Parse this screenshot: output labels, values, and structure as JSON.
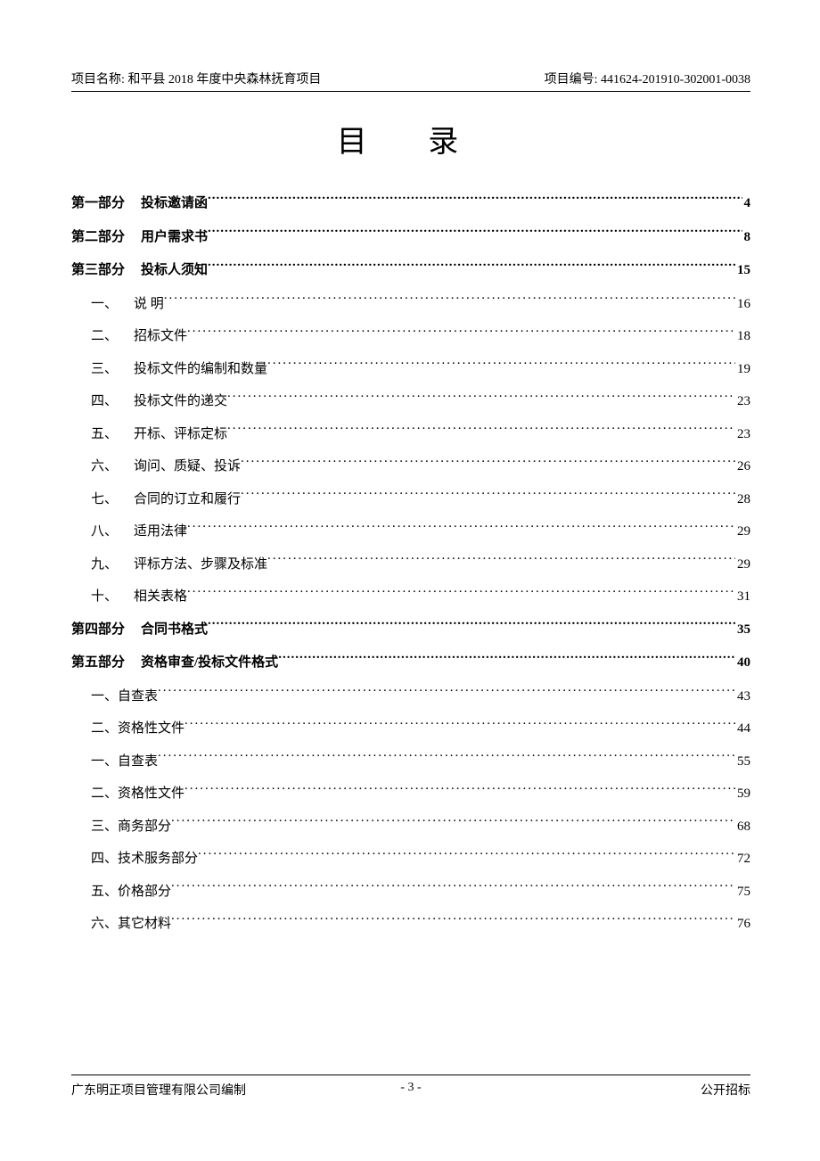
{
  "header": {
    "left": "项目名称: 和平县 2018 年度中央森林抚育项目",
    "right": "项目编号: 441624-201910-302001-0038"
  },
  "title": "目  录",
  "toc": [
    {
      "label": "第一部分",
      "text": "投标邀请函",
      "page": "4",
      "bold": true,
      "indent": 0,
      "gap": "wide"
    },
    {
      "label": "第二部分",
      "text": "用户需求书",
      "page": "8",
      "bold": true,
      "indent": 0,
      "gap": "wide"
    },
    {
      "label": "第三部分",
      "text": "投标人须知",
      "page": "15",
      "bold": true,
      "indent": 0,
      "gap": "wide"
    },
    {
      "label": "一、",
      "text": "说  明",
      "page": "16",
      "bold": false,
      "indent": 1,
      "gap": "mid"
    },
    {
      "label": "二、",
      "text": "招标文件",
      "page": "18",
      "bold": false,
      "indent": 1,
      "gap": "mid"
    },
    {
      "label": "三、",
      "text": "投标文件的编制和数量",
      "page": "19",
      "bold": false,
      "indent": 1,
      "gap": "mid"
    },
    {
      "label": "四、",
      "text": "投标文件的递交",
      "page": "23",
      "bold": false,
      "indent": 1,
      "gap": "mid"
    },
    {
      "label": "五、",
      "text": "开标、评标定标",
      "page": "23",
      "bold": false,
      "indent": 1,
      "gap": "mid"
    },
    {
      "label": "六、",
      "text": "询问、质疑、投诉",
      "page": "26",
      "bold": false,
      "indent": 1,
      "gap": "mid"
    },
    {
      "label": "七、",
      "text": "合同的订立和履行",
      "page": "28",
      "bold": false,
      "indent": 1,
      "gap": "mid"
    },
    {
      "label": "八、",
      "text": "适用法律",
      "page": "29",
      "bold": false,
      "indent": 1,
      "gap": "mid"
    },
    {
      "label": "九、",
      "text": "评标方法、步骤及标准",
      "page": "29",
      "bold": false,
      "indent": 1,
      "gap": "mid"
    },
    {
      "label": "十、",
      "text": "相关表格",
      "page": "31",
      "bold": false,
      "indent": 1,
      "gap": "mid"
    },
    {
      "label": "第四部分",
      "text": "合同书格式",
      "page": "35",
      "bold": true,
      "indent": 0,
      "gap": "wide"
    },
    {
      "label": "第五部分",
      "text": "资格审查/投标文件格式",
      "page": "40",
      "bold": true,
      "indent": 0,
      "gap": "wide"
    },
    {
      "label": "一、",
      "text": "自查表",
      "page": "43",
      "bold": false,
      "indent": 2,
      "gap": "tight"
    },
    {
      "label": "二、",
      "text": "资格性文件",
      "page": "44",
      "bold": false,
      "indent": 2,
      "gap": "tight"
    },
    {
      "label": "一、",
      "text": "自查表",
      "page": "55",
      "bold": false,
      "indent": 2,
      "gap": "tight"
    },
    {
      "label": "二、",
      "text": "资格性文件",
      "page": "59",
      "bold": false,
      "indent": 2,
      "gap": "tight"
    },
    {
      "label": "三、",
      "text": "商务部分",
      "page": "68",
      "bold": false,
      "indent": 2,
      "gap": "tight"
    },
    {
      "label": "四、",
      "text": "技术服务部分",
      "page": "72",
      "bold": false,
      "indent": 2,
      "gap": "tight"
    },
    {
      "label": "五、",
      "text": "价格部分",
      "page": "75",
      "bold": false,
      "indent": 2,
      "gap": "tight"
    },
    {
      "label": "六、",
      "text": "其它材料",
      "page": "76",
      "bold": false,
      "indent": 2,
      "gap": "tight"
    }
  ],
  "footer": {
    "left": "广东明正项目管理有限公司编制",
    "center": "- 3 -",
    "right": "公开招标"
  }
}
